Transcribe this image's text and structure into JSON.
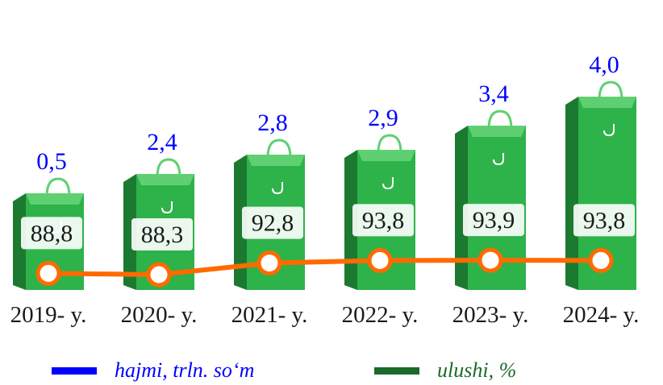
{
  "chart_data": {
    "type": "bar",
    "categories": [
      "2019- y.",
      "2020- y.",
      "2021- y.",
      "2022- y.",
      "2023- y.",
      "2024- y."
    ],
    "series": [
      {
        "name": "hajmi, trln. so‘m",
        "values": [
          0.5,
          2.4,
          2.8,
          2.9,
          3.4,
          4.0
        ],
        "labels": [
          "0,5",
          "2,4",
          "2,8",
          "2,9",
          "3,4",
          "4,0"
        ],
        "render": "bar",
        "color": "#0000ff"
      },
      {
        "name": "ulushi, %",
        "values": [
          88.8,
          88.3,
          92.8,
          93.8,
          93.9,
          93.8
        ],
        "labels": [
          "88,8",
          "88,3",
          "92,8",
          "93,8",
          "93,9",
          "93,8"
        ],
        "render": "line",
        "color": "#1a6b2a"
      }
    ],
    "ylim": [
      0,
      4.5
    ],
    "grid": false,
    "legend_position": "bottom"
  },
  "colors": {
    "bag_front": "#2eb24a",
    "bag_side": "#1b7a30",
    "bag_top": "#5fd072",
    "line": "#ff6a00",
    "marker_fill": "#ffffff",
    "value_text": "#0000ff",
    "share_text": "#1a1a1a",
    "label_box": "#ffffff"
  },
  "icons": {
    "bar_mark": "shopping-bag-icon",
    "background": "supermarket-shelves-photo"
  }
}
